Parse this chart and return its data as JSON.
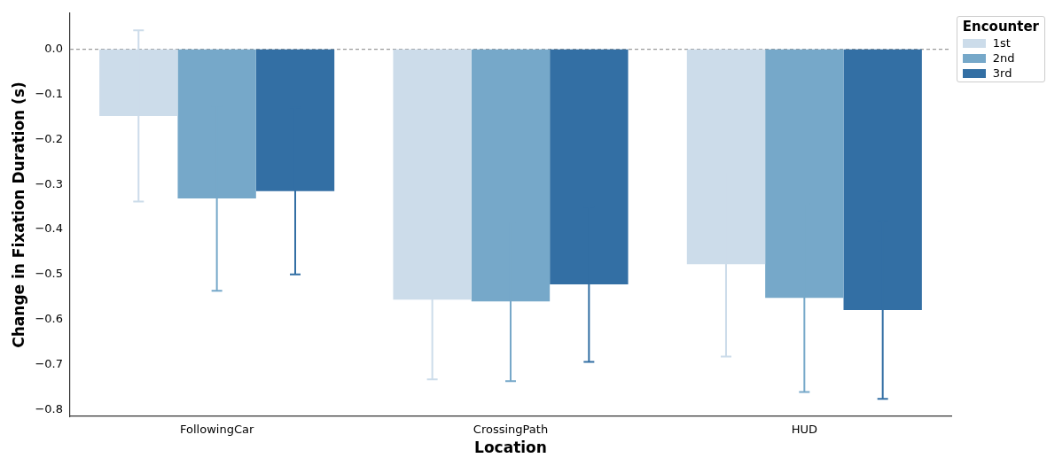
{
  "chart_data": {
    "type": "bar",
    "xlabel": "Location",
    "ylabel": "Change in Fixation Duration (s)",
    "legend_title": "Encounter",
    "categories": [
      "FollowingCar",
      "CrossingPath",
      "HUD"
    ],
    "series": [
      {
        "name": "1st",
        "color": "#ccdcea",
        "values": [
          -0.148,
          -0.556,
          -0.477
        ],
        "errors": [
          0.19,
          0.177,
          0.205
        ]
      },
      {
        "name": "2nd",
        "color": "#76a8c9",
        "values": [
          -0.331,
          -0.56,
          -0.552
        ],
        "errors": [
          0.205,
          0.177,
          0.209
        ]
      },
      {
        "name": "3rd",
        "color": "#336fa4",
        "values": [
          -0.315,
          -0.522,
          -0.579
        ],
        "errors": [
          0.185,
          0.172,
          0.197
        ]
      }
    ],
    "ylim": [
      -0.815,
      0.08
    ],
    "yticks": [
      {
        "value": -0.8,
        "label": "−0.8"
      },
      {
        "value": -0.7,
        "label": "−0.7"
      },
      {
        "value": -0.6,
        "label": "−0.6"
      },
      {
        "value": -0.5,
        "label": "−0.5"
      },
      {
        "value": -0.4,
        "label": "−0.4"
      },
      {
        "value": -0.3,
        "label": "−0.3"
      },
      {
        "value": -0.2,
        "label": "−0.2"
      },
      {
        "value": -0.1,
        "label": "−0.1"
      },
      {
        "value": 0,
        "label": "0.0"
      }
    ],
    "ref_lines": [
      {
        "axis": "y",
        "value": 0,
        "color": "#999999",
        "line_style": "dashed"
      }
    ],
    "grid": false,
    "legend": "top right"
  }
}
